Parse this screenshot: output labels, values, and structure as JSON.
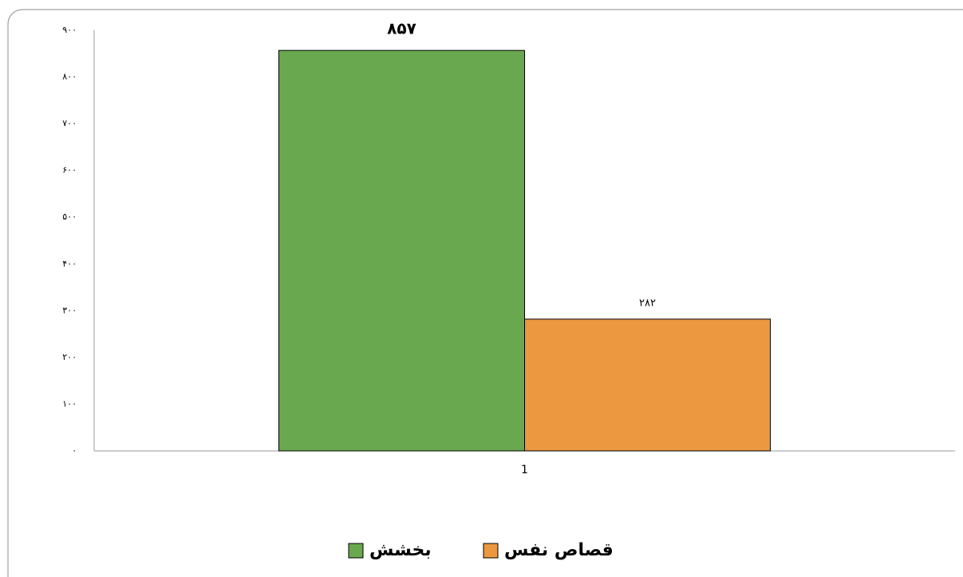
{
  "chart_data": {
    "type": "bar",
    "categories": [
      "1"
    ],
    "series": [
      {
        "name": "بخشش",
        "color": "#6aa84f",
        "values": [
          857
        ],
        "value_labels": [
          "۸۵۷"
        ]
      },
      {
        "name": "قصاص نفس",
        "color": "#eb9841",
        "values": [
          282
        ],
        "value_labels": [
          "۲۸۲"
        ]
      }
    ],
    "ylim": [
      0,
      900
    ],
    "yticks": [
      {
        "value": 0,
        "label": "٠"
      },
      {
        "value": 100,
        "label": "١٠٠"
      },
      {
        "value": 200,
        "label": "٢٠٠"
      },
      {
        "value": 300,
        "label": "٣٠٠"
      },
      {
        "value": 400,
        "label": "۴٠٠"
      },
      {
        "value": 500,
        "label": "۵٠٠"
      },
      {
        "value": 600,
        "label": "۶٠٠"
      },
      {
        "value": 700,
        "label": "٧٠٠"
      },
      {
        "value": 800,
        "label": "٨٠٠"
      },
      {
        "value": 900,
        "label": "٩٠٠"
      }
    ],
    "grid": false,
    "legend": "bottom"
  }
}
